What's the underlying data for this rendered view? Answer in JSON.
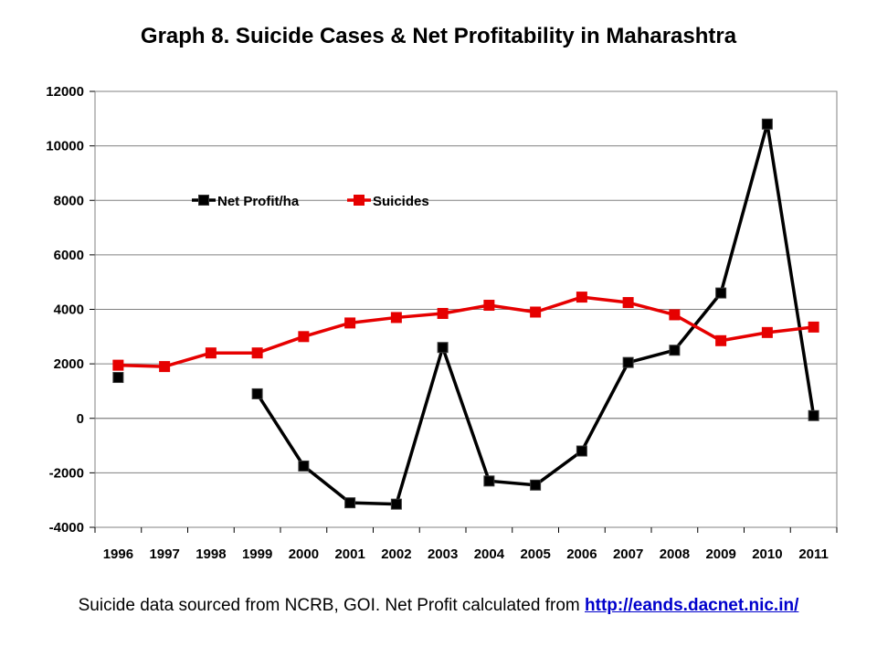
{
  "title": "Graph 8. Suicide Cases & Net Profitability in Maharashtra",
  "footer": {
    "text": "Suicide data sourced from NCRB, GOI. Net Profit calculated from ",
    "link_text": "http://eands.dacnet.nic.in/"
  },
  "colors": {
    "net_profit": "#000000",
    "net_profit_marker": "#000000",
    "suicides": "#e60000",
    "grid": "#808080"
  },
  "chart_data": {
    "type": "line",
    "title": "Graph 8. Suicide Cases & Net Profitability in Maharashtra",
    "xlabel": "",
    "ylabel": "",
    "categories": [
      "1996",
      "1997",
      "1998",
      "1999",
      "2000",
      "2001",
      "2002",
      "2003",
      "2004",
      "2005",
      "2006",
      "2007",
      "2008",
      "2009",
      "2010",
      "2011"
    ],
    "ylim": [
      -4000,
      12000
    ],
    "yticks": [
      "12000",
      "10000",
      "8000",
      "6000",
      "4000",
      "2000",
      "0",
      "-2000",
      "-4000"
    ],
    "ytick_values": [
      12000,
      10000,
      8000,
      6000,
      4000,
      2000,
      0,
      -2000,
      -4000
    ],
    "grid": true,
    "legend": "upper-left",
    "series": [
      {
        "name": "Net Profit/ha",
        "color": "#000000",
        "values": [
          1500,
          null,
          null,
          900,
          -1750,
          -3100,
          -3150,
          2600,
          -2300,
          -2450,
          -1200,
          2050,
          2500,
          4600,
          10800,
          100
        ]
      },
      {
        "name": "Suicides",
        "color": "#e60000",
        "values": [
          1950,
          1900,
          2400,
          2400,
          3000,
          3500,
          3700,
          3850,
          4150,
          3900,
          4450,
          4250,
          3800,
          2850,
          3150,
          3350
        ]
      }
    ]
  }
}
